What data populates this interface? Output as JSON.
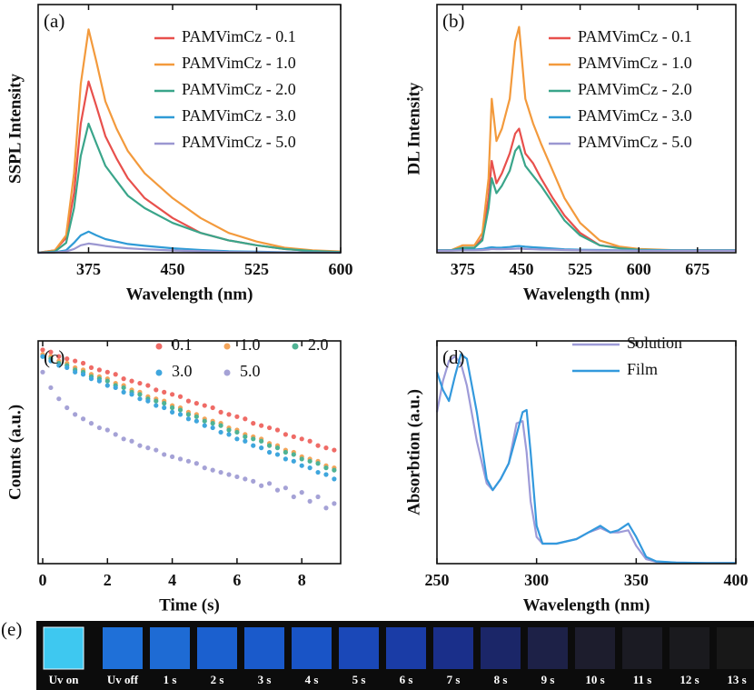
{
  "chart_data": [
    {
      "type": "line",
      "panel_label": "(a)",
      "xlabel": "Wavelength (nm)",
      "ylabel": "SSPL Intensity",
      "xlim": [
        330,
        600
      ],
      "ylim": [
        0,
        100
      ],
      "xticks": [
        375,
        450,
        525,
        600
      ],
      "x": [
        330,
        345,
        355,
        362,
        368,
        375,
        382,
        390,
        400,
        410,
        425,
        450,
        475,
        500,
        525,
        550,
        575,
        600
      ],
      "series": [
        {
          "name": "PAMVimCz - 0.1",
          "color": "#e8504c",
          "values": [
            0,
            1,
            6,
            24,
            52,
            69,
            59,
            47,
            38,
            30,
            22,
            14,
            8,
            5,
            3,
            1.5,
            0.7,
            0.3
          ]
        },
        {
          "name": "PAMVimCz - 1.0",
          "color": "#f39a3c",
          "values": [
            0,
            1,
            7,
            32,
            68,
            90,
            77,
            61,
            50,
            41,
            32,
            22,
            14,
            8,
            4.5,
            2,
            1,
            0.5
          ]
        },
        {
          "name": "PAMVimCz - 2.0",
          "color": "#3aa58a",
          "values": [
            0,
            0.5,
            4,
            18,
            39,
            52,
            44,
            35,
            29,
            23,
            18,
            12,
            8,
            5,
            3,
            1.5,
            0.7,
            0.3
          ]
        },
        {
          "name": "PAMVimCz - 3.0",
          "color": "#2f9bd6",
          "values": [
            0,
            0.2,
            1,
            4,
            7,
            8.5,
            7,
            5.5,
            4.5,
            3.5,
            2.8,
            1.8,
            1.1,
            0.6,
            0.4,
            0.2,
            0.1,
            0
          ]
        },
        {
          "name": "PAMVimCz - 5.0",
          "color": "#9b97d1",
          "values": [
            0,
            0.1,
            0.5,
            1.5,
            3,
            3.7,
            3.3,
            2.7,
            2.2,
            1.8,
            1.4,
            0.9,
            0.6,
            0.3,
            0.2,
            0.1,
            0.05,
            0
          ]
        }
      ]
    },
    {
      "type": "line",
      "panel_label": "(b)",
      "xlabel": "Wavelength (nm)",
      "ylabel": "DL Intensity",
      "xlim": [
        342,
        724
      ],
      "ylim": [
        0,
        100
      ],
      "xticks": [
        375,
        450,
        525,
        600,
        675
      ],
      "x": [
        342,
        360,
        375,
        390,
        400,
        408,
        412,
        418,
        425,
        435,
        442,
        447,
        455,
        465,
        475,
        490,
        505,
        525,
        550,
        575,
        600,
        650,
        700,
        724
      ],
      "series": [
        {
          "name": "PAMVimCz - 0.1",
          "color": "#e8504c",
          "values": [
            1,
            1,
            2,
            2,
            6,
            22,
            37,
            28,
            32,
            40,
            48,
            50,
            40,
            36,
            30,
            22,
            15,
            8,
            3,
            2,
            1.2,
            1,
            1,
            1
          ]
        },
        {
          "name": "PAMVimCz - 1.0",
          "color": "#f39a3c",
          "values": [
            1,
            1,
            3,
            3,
            8,
            30,
            62,
            45,
            50,
            62,
            85,
            91,
            62,
            52,
            44,
            33,
            22,
            12,
            5,
            2.5,
            1.5,
            1,
            1,
            1
          ]
        },
        {
          "name": "PAMVimCz - 2.0",
          "color": "#3aa58a",
          "values": [
            1,
            1,
            2,
            2,
            5,
            18,
            30,
            24,
            27,
            33,
            41,
            43,
            35,
            31,
            27,
            20,
            13,
            7,
            3,
            1.8,
            1.2,
            1,
            1,
            1
          ]
        },
        {
          "name": "PAMVimCz - 3.0",
          "color": "#2f9bd6",
          "values": [
            1,
            1,
            1.2,
            1.3,
            1.5,
            2,
            2.2,
            2,
            2.1,
            2.3,
            2.6,
            2.7,
            2.4,
            2.2,
            2,
            1.7,
            1.4,
            1.2,
            1.1,
            1,
            1,
            1,
            1,
            1
          ]
        },
        {
          "name": "PAMVimCz - 5.0",
          "color": "#9b97d1",
          "values": [
            0.8,
            0.8,
            1,
            1,
            1.1,
            1.3,
            1.5,
            1.4,
            1.4,
            1.5,
            1.6,
            1.7,
            1.5,
            1.4,
            1.3,
            1.2,
            1.1,
            1,
            0.9,
            0.9,
            0.8,
            0.8,
            0.8,
            0.8
          ]
        }
      ]
    },
    {
      "type": "scatter",
      "panel_label": "(c)",
      "xlabel": "Time (s)",
      "ylabel": "Counts (a.u.)",
      "xlim": [
        -0.14,
        9.2
      ],
      "ylim": [
        0,
        100
      ],
      "xticks": [
        0,
        2,
        4,
        6,
        8
      ],
      "x": [
        0,
        0.25,
        0.5,
        0.75,
        1,
        1.25,
        1.5,
        1.75,
        2,
        2.25,
        2.5,
        2.75,
        3,
        3.25,
        3.5,
        3.75,
        4,
        4.25,
        4.5,
        4.75,
        5,
        5.25,
        5.5,
        5.75,
        6,
        6.25,
        6.5,
        6.75,
        7,
        7.25,
        7.5,
        7.75,
        8,
        8.25,
        8.5,
        8.75,
        9
      ],
      "series": [
        {
          "name": "0.1",
          "color": "#ef6b66",
          "values": [
            96,
            95,
            93,
            92,
            91,
            90,
            88,
            87,
            86,
            85,
            83,
            82,
            81,
            80,
            78,
            77,
            76,
            75,
            73,
            72,
            71,
            70,
            68,
            67,
            66,
            65,
            63,
            62,
            61,
            60,
            58,
            57,
            56,
            55,
            53,
            52,
            51
          ]
        },
        {
          "name": "1.0",
          "color": "#f4a55a",
          "values": [
            94,
            93,
            91,
            90,
            88,
            87,
            85,
            84,
            83,
            81,
            80,
            78,
            77,
            75,
            74,
            73,
            71,
            70,
            68,
            67,
            65,
            64,
            63,
            61,
            60,
            58,
            57,
            56,
            54,
            53,
            51,
            50,
            48,
            47,
            46,
            44,
            43
          ]
        },
        {
          "name": "2.0",
          "color": "#4fb394",
          "values": [
            93,
            92,
            90,
            89,
            87,
            86,
            84,
            83,
            82,
            80,
            79,
            77,
            76,
            74,
            73,
            72,
            70,
            69,
            67,
            66,
            64,
            63,
            62,
            60,
            59,
            57,
            56,
            55,
            53,
            52,
            50,
            49,
            47,
            46,
            45,
            43,
            42
          ]
        },
        {
          "name": "3.0",
          "color": "#3fa6dd",
          "values": [
            93,
            91,
            89,
            88,
            86,
            85,
            83,
            82,
            80,
            79,
            77,
            76,
            74,
            73,
            71,
            70,
            68,
            67,
            65,
            64,
            62,
            61,
            59,
            58,
            56,
            55,
            53,
            52,
            50,
            49,
            47,
            46,
            44,
            43,
            41,
            40,
            38
          ]
        },
        {
          "name": "5.0",
          "color": "#a5a2d6",
          "values": [
            86,
            79,
            74,
            70,
            67,
            65,
            63,
            61,
            60,
            58,
            56,
            55,
            53,
            52,
            51,
            49,
            48,
            47,
            46,
            45,
            43,
            42,
            41,
            40,
            39,
            38,
            37,
            35,
            36,
            33,
            34,
            30,
            32,
            28,
            30,
            25,
            27
          ]
        }
      ]
    },
    {
      "type": "line",
      "panel_label": "(d)",
      "xlabel": "Wavelength (nm)",
      "ylabel": "Absorbtion (a.u.)",
      "xlim": [
        250,
        400
      ],
      "ylim": [
        0,
        100
      ],
      "xticks": [
        250,
        300,
        350,
        400
      ],
      "x": [
        250,
        253,
        256,
        259,
        262,
        265,
        270,
        275,
        278,
        282,
        286,
        290,
        293,
        295,
        297,
        300,
        303,
        310,
        320,
        326,
        332,
        337,
        341,
        346,
        350,
        355,
        360,
        370,
        385,
        400
      ],
      "series": [
        {
          "name": "Solution",
          "color": "#9e9bd8",
          "values": [
            68,
            82,
            91,
            93,
            90,
            80,
            55,
            36,
            33,
            38,
            45,
            63,
            64,
            50,
            28,
            12,
            9,
            9,
            11,
            14,
            16,
            14,
            14,
            15,
            8,
            2,
            0.8,
            0.5,
            0.3,
            0.3
          ]
        },
        {
          "name": "Film",
          "color": "#3399dd",
          "values": [
            86,
            78,
            73,
            84,
            94,
            92,
            68,
            38,
            33,
            38,
            45,
            58,
            68,
            69,
            50,
            17,
            9,
            9,
            11,
            14,
            17,
            14,
            15,
            18,
            12,
            3,
            1,
            0.5,
            0.3,
            0.3
          ]
        }
      ]
    }
  ],
  "photo_strip": {
    "panel_label": "(e)",
    "squares": [
      {
        "label": "Uv on",
        "color": "#3ec8f0"
      },
      {
        "label": "Uv off",
        "color": "#1f70d8"
      },
      {
        "label": "1 s",
        "color": "#1e6bd4"
      },
      {
        "label": "2 s",
        "color": "#1b60cf"
      },
      {
        "label": "3 s",
        "color": "#1a5acb"
      },
      {
        "label": "4 s",
        "color": "#1954c6"
      },
      {
        "label": "5 s",
        "color": "#1a48b8"
      },
      {
        "label": "6 s",
        "color": "#1a3ca6"
      },
      {
        "label": "7 s",
        "color": "#1a2f8a"
      },
      {
        "label": "8 s",
        "color": "#1b2668"
      },
      {
        "label": "9 s",
        "color": "#1d2147"
      },
      {
        "label": "10 s",
        "color": "#1d1d2d"
      },
      {
        "label": "11 s",
        "color": "#1b1b23"
      },
      {
        "label": "12 s",
        "color": "#1a1a1e"
      },
      {
        "label": "13 s",
        "color": "#181818"
      }
    ]
  }
}
